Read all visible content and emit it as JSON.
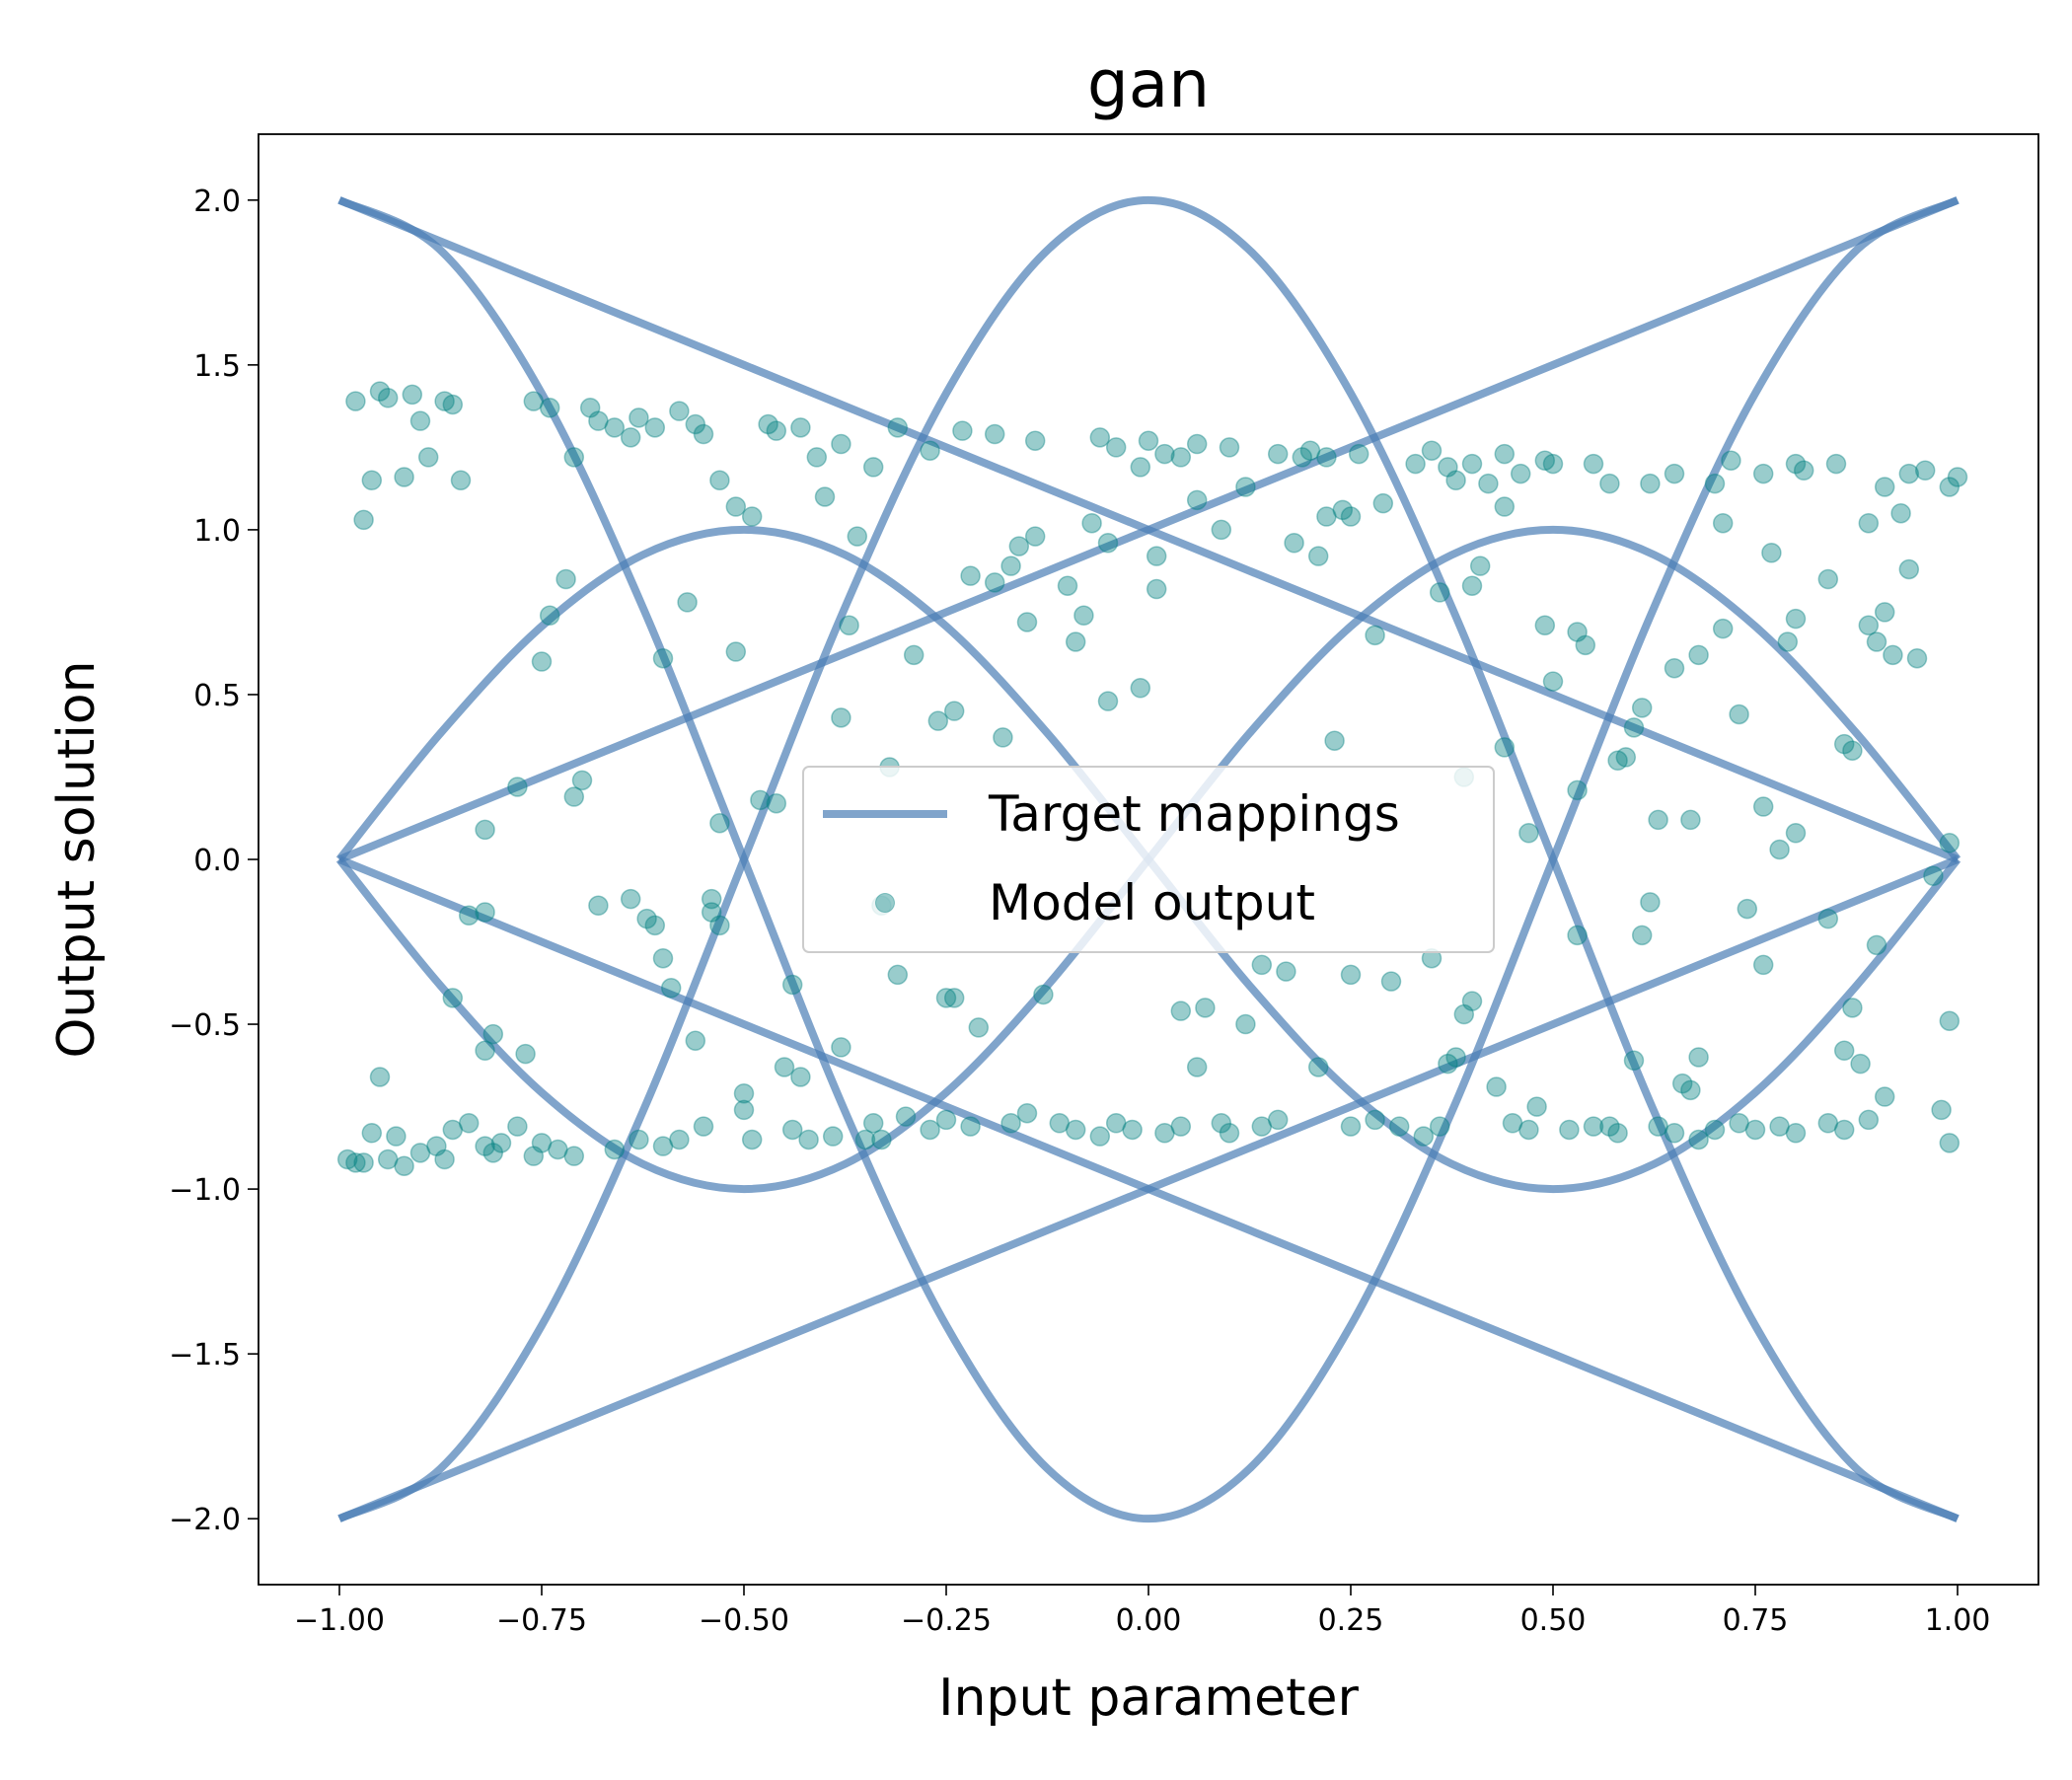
{
  "chart_data": {
    "type": "line",
    "title": "gan",
    "x_label": "Input parameter",
    "y_label": "Output solution",
    "xlim": [
      -1.1,
      1.1
    ],
    "ylim": [
      -2.2,
      2.2
    ],
    "xticks": [
      {
        "value": -1,
        "label": "−1.00"
      },
      {
        "value": -0.75,
        "label": "−0.75"
      },
      {
        "value": -0.5,
        "label": "−0.50"
      },
      {
        "value": -0.25,
        "label": "−0.25"
      },
      {
        "value": 0,
        "label": "0.00"
      },
      {
        "value": 0.25,
        "label": "0.25"
      },
      {
        "value": 0.5,
        "label": "0.50"
      },
      {
        "value": 0.75,
        "label": "0.75"
      },
      {
        "value": 1,
        "label": "1.00"
      }
    ],
    "yticks": [
      {
        "value": -2,
        "label": "−2.0"
      },
      {
        "value": -1.5,
        "label": "−1.5"
      },
      {
        "value": -1,
        "label": "−1.0"
      },
      {
        "value": -0.5,
        "label": "−0.5"
      },
      {
        "value": 0,
        "label": "0.0"
      },
      {
        "value": 0.5,
        "label": "0.5"
      },
      {
        "value": 1,
        "label": "1.0"
      },
      {
        "value": 1.5,
        "label": "1.5"
      },
      {
        "value": 2,
        "label": "2.0"
      }
    ],
    "grid": false,
    "legend": "center",
    "series": [
      {
        "name": "Target mappings",
        "type": "line",
        "color": "#4a7db5",
        "x": [
          -1,
          -0.875,
          -0.75,
          -0.625,
          -0.5,
          -0.375,
          -0.25,
          -0.125,
          0,
          0.125,
          0.25,
          0.375,
          0.5,
          0.625,
          0.75,
          0.875,
          1,
          null,
          -1,
          -0.875,
          -0.75,
          -0.625,
          -0.5,
          -0.375,
          -0.25,
          -0.125,
          0,
          0.125,
          0.25,
          0.375,
          0.5,
          0.625,
          0.75,
          0.875,
          1,
          null,
          -1,
          -0.875,
          -0.75,
          -0.625,
          -0.5,
          -0.375,
          -0.25,
          -0.125,
          0,
          0.125,
          0.25,
          0.375,
          0.5,
          0.625,
          0.75,
          0.875,
          1,
          null,
          -1,
          -0.875,
          -0.75,
          -0.625,
          -0.5,
          -0.375,
          -0.25,
          -0.125,
          0,
          0.125,
          0.25,
          0.375,
          0.5,
          0.625,
          0.75,
          0.875,
          1,
          null,
          -1,
          -0.875,
          -0.75,
          -0.625,
          -0.5,
          -0.375,
          -0.25,
          -0.125,
          0,
          0.125,
          0.25,
          0.375,
          0.5,
          0.625,
          0.75,
          0.875,
          1,
          null,
          -1,
          -0.875,
          -0.75,
          -0.625,
          -0.5,
          -0.375,
          -0.25,
          -0.125,
          0,
          0.125,
          0.25,
          0.375,
          0.5,
          0.625,
          0.75,
          0.875,
          1,
          null,
          -1,
          -0.875,
          -0.75,
          -0.625,
          -0.5,
          -0.375,
          -0.25,
          -0.125,
          0,
          0.125,
          0.25,
          0.375,
          0.5,
          0.625,
          0.75,
          0.875,
          1,
          null,
          -1,
          -0.875,
          -0.75,
          -0.625,
          -0.5,
          -0.375,
          -0.25,
          -0.125,
          0,
          0.125,
          0.25,
          0.375,
          0.5,
          0.625,
          0.75,
          0.875,
          1
        ],
        "values": [
          -2,
          -1.848,
          -1.414,
          -0.765,
          0,
          0.765,
          1.414,
          1.848,
          2,
          1.848,
          1.414,
          0.765,
          0,
          -0.765,
          -1.414,
          -1.848,
          -2,
          null,
          2,
          1.848,
          1.414,
          0.765,
          0,
          -0.765,
          -1.414,
          -1.848,
          -2,
          -1.848,
          -1.414,
          -0.765,
          0,
          0.765,
          1.414,
          1.848,
          2,
          null,
          0,
          -0.383,
          -0.707,
          -0.924,
          -1,
          -0.924,
          -0.707,
          -0.383,
          0,
          0.383,
          0.707,
          0.924,
          1,
          0.924,
          0.707,
          0.383,
          0,
          null,
          0,
          0.383,
          0.707,
          0.924,
          1,
          0.924,
          0.707,
          0.383,
          0,
          -0.383,
          -0.707,
          -0.924,
          -1,
          -0.924,
          -0.707,
          -0.383,
          0,
          null,
          0,
          0.125,
          0.25,
          0.375,
          0.5,
          0.625,
          0.75,
          0.875,
          1,
          1.125,
          1.25,
          1.375,
          1.5,
          1.625,
          1.75,
          1.875,
          2,
          null,
          0,
          -0.125,
          -0.25,
          -0.375,
          -0.5,
          -0.625,
          -0.75,
          -0.875,
          -1,
          -1.125,
          -1.25,
          -1.375,
          -1.5,
          -1.625,
          -1.75,
          -1.875,
          -2,
          null,
          2,
          1.875,
          1.75,
          1.625,
          1.5,
          1.375,
          1.25,
          1.125,
          1,
          0.875,
          0.75,
          0.625,
          0.5,
          0.375,
          0.25,
          0.125,
          0,
          null,
          -2,
          -1.875,
          -1.75,
          -1.625,
          -1.5,
          -1.375,
          -1.25,
          -1.125,
          -1,
          -0.875,
          -0.75,
          -0.625,
          -0.5,
          -0.375,
          -0.25,
          -0.125,
          0
        ]
      },
      {
        "name": "Model output",
        "type": "scatter",
        "color": "#008080",
        "x": [
          -0.98,
          -0.96,
          -0.95,
          -0.94,
          -0.97,
          -0.91,
          -0.9,
          -0.89,
          -0.92,
          -0.87,
          -0.86,
          -0.85,
          -0.76,
          -0.74,
          -0.71,
          -0.69,
          -0.68,
          -0.66,
          -0.64,
          -0.63,
          -0.61,
          -0.58,
          -0.56,
          -0.55,
          -0.53,
          -0.51,
          -0.49,
          -0.47,
          -0.46,
          -0.43,
          -0.41,
          -0.4,
          -0.38,
          -0.34,
          -0.31,
          -0.27,
          -0.23,
          -0.19,
          -0.14,
          -0.06,
          -0.04,
          -0.01,
          0.0,
          0.02,
          0.04,
          0.06,
          0.1,
          0.12,
          0.16,
          0.19,
          0.2,
          0.22,
          0.24,
          0.26,
          0.29,
          0.33,
          0.35,
          0.37,
          0.38,
          0.4,
          0.42,
          0.44,
          0.46,
          0.49,
          0.5,
          0.55,
          0.57,
          0.62,
          0.65,
          0.7,
          0.72,
          0.76,
          0.8,
          0.81,
          0.85,
          0.91,
          0.94,
          0.96,
          0.99,
          1.0,
          0.93,
          0.89,
          0.71,
          0.44,
          0.06,
          0.09,
          -0.36,
          -0.72,
          -0.74,
          -0.75,
          -0.71,
          -0.7,
          -0.78,
          -0.82,
          -0.84,
          -0.82,
          -0.86,
          -0.81,
          -0.82,
          -0.77,
          -0.95,
          -0.68,
          -0.64,
          -0.62,
          -0.61,
          -0.6,
          -0.59,
          -0.56,
          -0.54,
          -0.53,
          -0.54,
          -0.53,
          -0.57,
          -0.51,
          -0.48,
          -0.46,
          -0.6,
          -0.38,
          -0.37,
          -0.32,
          -0.29,
          -0.26,
          -0.24,
          -0.22,
          -0.19,
          -0.18,
          -0.17,
          -0.16,
          -0.15,
          -0.14,
          -0.1,
          -0.09,
          -0.08,
          -0.07,
          -0.05,
          -0.05,
          -0.01,
          0.01,
          0.01,
          -0.33,
          -0.31,
          -0.25,
          -0.24,
          -0.21,
          -0.13,
          -0.38,
          -0.44,
          -0.45,
          -0.43,
          -0.5,
          -0.5,
          0.04,
          0.07,
          0.06,
          0.12,
          0.28,
          0.21,
          0.22,
          0.25,
          0.18,
          0.36,
          0.4,
          0.41,
          0.44,
          0.47,
          0.49,
          0.5,
          0.53,
          0.54,
          0.53,
          0.58,
          0.59,
          0.61,
          0.6,
          0.65,
          0.67,
          0.63,
          0.68,
          0.71,
          0.73,
          0.77,
          0.79,
          0.8,
          0.84,
          0.89,
          0.9,
          0.91,
          0.92,
          0.95,
          0.94,
          0.86,
          0.87,
          0.76,
          0.78,
          0.8,
          0.99,
          0.97,
          0.74,
          0.76,
          0.84,
          0.87,
          0.9,
          0.86,
          0.88,
          0.99,
          0.61,
          0.62,
          0.6,
          0.68,
          0.66,
          0.67,
          0.53,
          0.39,
          0.4,
          0.38,
          0.37,
          0.35,
          0.3,
          0.25,
          0.21,
          0.17,
          0.14,
          0.23,
          0.43,
          0.48,
          0.39,
          -0.99,
          -0.98,
          -0.97,
          -0.96,
          -0.94,
          -0.93,
          -0.92,
          -0.9,
          -0.88,
          -0.87,
          -0.86,
          -0.84,
          -0.82,
          -0.81,
          -0.8,
          -0.78,
          -0.76,
          -0.75,
          -0.73,
          -0.71,
          -0.66,
          -0.63,
          -0.6,
          -0.58,
          -0.55,
          -0.49,
          -0.44,
          -0.42,
          -0.39,
          -0.35,
          -0.34,
          -0.33,
          -0.3,
          -0.27,
          -0.25,
          -0.22,
          -0.17,
          -0.15,
          -0.11,
          -0.09,
          -0.06,
          -0.04,
          -0.02,
          0.02,
          0.04,
          0.09,
          0.1,
          0.14,
          0.16,
          0.25,
          0.28,
          0.31,
          0.34,
          0.36,
          0.45,
          0.47,
          0.52,
          0.55,
          0.57,
          0.58,
          0.63,
          0.65,
          0.68,
          0.7,
          0.73,
          0.75,
          0.78,
          0.8,
          0.84,
          0.86,
          0.89,
          0.91,
          0.98,
          0.99
        ],
        "values": [
          1.39,
          1.15,
          1.42,
          1.4,
          1.03,
          1.41,
          1.33,
          1.22,
          1.16,
          1.39,
          1.38,
          1.15,
          1.39,
          1.37,
          1.22,
          1.37,
          1.33,
          1.31,
          1.28,
          1.34,
          1.31,
          1.36,
          1.32,
          1.29,
          1.15,
          1.07,
          1.04,
          1.32,
          1.3,
          1.31,
          1.22,
          1.1,
          1.26,
          1.19,
          1.31,
          1.24,
          1.3,
          1.29,
          1.27,
          1.28,
          1.25,
          1.19,
          1.27,
          1.23,
          1.22,
          1.26,
          1.25,
          1.13,
          1.23,
          1.22,
          1.24,
          1.22,
          1.06,
          1.23,
          1.08,
          1.2,
          1.24,
          1.19,
          1.15,
          1.2,
          1.14,
          1.23,
          1.17,
          1.21,
          1.2,
          1.2,
          1.14,
          1.14,
          1.17,
          1.14,
          1.21,
          1.17,
          1.2,
          1.18,
          1.2,
          1.13,
          1.17,
          1.18,
          1.13,
          1.16,
          1.05,
          1.02,
          1.02,
          1.07,
          1.09,
          1.0,
          0.98,
          0.85,
          0.74,
          0.6,
          0.19,
          0.24,
          0.22,
          0.09,
          -0.17,
          -0.16,
          -0.42,
          -0.53,
          -0.58,
          -0.59,
          -0.66,
          -0.14,
          -0.12,
          -0.18,
          -0.2,
          -0.3,
          -0.39,
          -0.55,
          -0.12,
          -0.2,
          -0.16,
          0.11,
          0.78,
          0.63,
          0.18,
          0.17,
          0.61,
          0.43,
          0.71,
          0.28,
          0.62,
          0.42,
          0.45,
          0.86,
          0.84,
          0.37,
          0.89,
          0.95,
          0.72,
          0.98,
          0.83,
          0.66,
          0.74,
          1.02,
          0.96,
          0.48,
          0.52,
          0.82,
          0.92,
          -0.14,
          -0.35,
          -0.42,
          -0.42,
          -0.51,
          -0.41,
          -0.57,
          -0.38,
          -0.63,
          -0.66,
          -0.71,
          -0.76,
          -0.46,
          -0.45,
          -0.63,
          -0.5,
          0.68,
          0.92,
          1.04,
          1.04,
          0.96,
          0.81,
          0.83,
          0.89,
          0.34,
          0.08,
          0.71,
          0.54,
          0.69,
          0.65,
          0.21,
          0.3,
          0.31,
          0.46,
          0.4,
          0.58,
          0.12,
          0.12,
          0.62,
          0.7,
          0.44,
          0.93,
          0.66,
          0.73,
          0.85,
          0.71,
          0.66,
          0.75,
          0.62,
          0.61,
          0.88,
          0.35,
          0.33,
          0.16,
          0.03,
          0.08,
          0.05,
          -0.05,
          -0.15,
          -0.32,
          -0.18,
          -0.45,
          -0.26,
          -0.58,
          -0.62,
          -0.49,
          -0.23,
          -0.13,
          -0.61,
          -0.6,
          -0.68,
          -0.7,
          -0.23,
          -0.47,
          -0.43,
          -0.6,
          -0.62,
          -0.3,
          -0.37,
          -0.35,
          -0.63,
          -0.34,
          -0.32,
          0.36,
          -0.69,
          -0.75,
          0.25,
          -0.91,
          -0.92,
          -0.92,
          -0.83,
          -0.91,
          -0.84,
          -0.93,
          -0.89,
          -0.87,
          -0.91,
          -0.82,
          -0.8,
          -0.87,
          -0.89,
          -0.86,
          -0.81,
          -0.9,
          -0.86,
          -0.88,
          -0.9,
          -0.88,
          -0.85,
          -0.87,
          -0.85,
          -0.81,
          -0.85,
          -0.82,
          -0.85,
          -0.84,
          -0.85,
          -0.8,
          -0.85,
          -0.78,
          -0.82,
          -0.79,
          -0.81,
          -0.8,
          -0.77,
          -0.8,
          -0.82,
          -0.84,
          -0.8,
          -0.82,
          -0.83,
          -0.81,
          -0.8,
          -0.83,
          -0.81,
          -0.79,
          -0.81,
          -0.79,
          -0.81,
          -0.84,
          -0.81,
          -0.8,
          -0.82,
          -0.82,
          -0.81,
          -0.81,
          -0.83,
          -0.81,
          -0.83,
          -0.85,
          -0.82,
          -0.8,
          -0.82,
          -0.81,
          -0.83,
          -0.8,
          -0.82,
          -0.79,
          -0.72,
          -0.76,
          -0.86
        ]
      }
    ]
  }
}
